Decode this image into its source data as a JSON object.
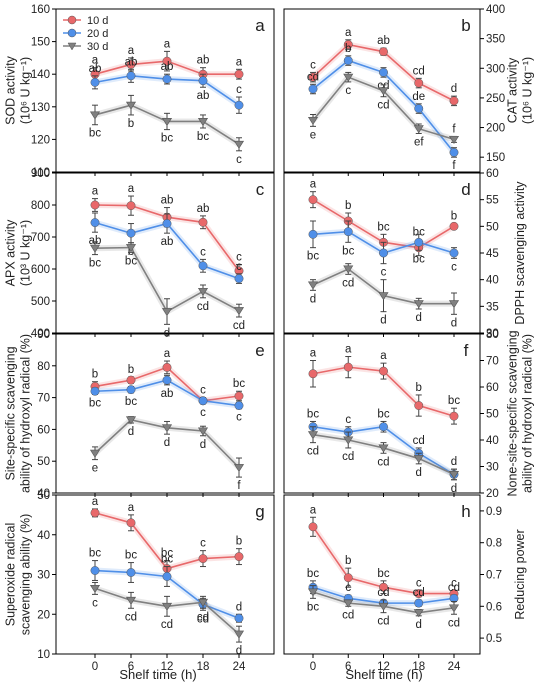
{
  "figure": {
    "xlabel_left": "Shelf time (h)",
    "xlabel_right": "Shelf time (h)",
    "legend": [
      {
        "label": "10 d",
        "color": "#e8686a",
        "marker": "circle"
      },
      {
        "label": "20 d",
        "color": "#4f8fe8",
        "marker": "circle"
      },
      {
        "label": "30 d",
        "color": "#808080",
        "marker": "triangle-down"
      }
    ]
  },
  "chart_data": [
    {
      "type": "line",
      "panel": "a",
      "axis_side": "left",
      "ylabel": [
        "SOD activity",
        "(10⁶ U kg⁻¹)"
      ],
      "x": [
        0,
        6,
        12,
        18,
        24
      ],
      "xticks": [
        "0",
        "6",
        "12",
        "18",
        "24"
      ],
      "ylim": [
        110,
        160
      ],
      "yticks": [
        110,
        120,
        130,
        140,
        150,
        160
      ],
      "series": [
        {
          "name": "10 d",
          "values": [
            140,
            143,
            144,
            140,
            140
          ],
          "err": [
            2,
            2,
            3,
            2,
            1.5
          ],
          "letters": [
            "a",
            "a",
            "a",
            "ab",
            "a"
          ],
          "letter_pos": [
            "above",
            "above",
            "above",
            "above",
            "above"
          ]
        },
        {
          "name": "20 d",
          "values": [
            137.5,
            139.5,
            138.5,
            138,
            130.5
          ],
          "err": [
            2,
            2,
            1.5,
            2,
            2.5
          ],
          "letters": [
            "ab",
            "ab",
            "ab",
            "ab",
            "c"
          ],
          "letter_pos": [
            "above",
            "above",
            "above",
            "below",
            "above"
          ]
        },
        {
          "name": "30 d",
          "values": [
            127.5,
            130.5,
            125.5,
            125.5,
            118.5
          ],
          "err": [
            3,
            3,
            2.5,
            2,
            2
          ],
          "letters": [
            "bc",
            "b",
            "bc",
            "bc",
            "c"
          ],
          "letter_pos": [
            "below",
            "below",
            "below",
            "below",
            "below"
          ]
        }
      ]
    },
    {
      "type": "line",
      "panel": "b",
      "axis_side": "right",
      "ylabel": [
        "CAT activity",
        "(10⁶ U kg⁻¹)"
      ],
      "x": [
        0,
        6,
        12,
        18,
        24
      ],
      "xticks": [
        "0",
        "6",
        "12",
        "18",
        "24"
      ],
      "ylim": [
        125,
        400
      ],
      "yticks": [
        150,
        200,
        250,
        300,
        350,
        400
      ],
      "series": [
        {
          "name": "10 d",
          "values": [
            285,
            340,
            328,
            275,
            245
          ],
          "err": [
            8,
            8,
            6,
            8,
            8
          ],
          "letters": [
            "c",
            "a",
            "ab",
            "cd",
            "d"
          ],
          "letter_pos": [
            "above",
            "above",
            "above",
            "above",
            "above"
          ]
        },
        {
          "name": "20 d",
          "values": [
            265,
            313,
            293,
            232,
            158
          ],
          "err": [
            8,
            8,
            8,
            8,
            8
          ],
          "letters": [
            "cd",
            "b",
            "cd",
            "de",
            "f"
          ],
          "letter_pos": [
            "above",
            "above",
            "below",
            "above",
            "below"
          ]
        },
        {
          "name": "30 d",
          "values": [
            212,
            285,
            262,
            198,
            180
          ],
          "err": [
            10,
            8,
            10,
            8,
            5
          ],
          "letters": [
            "e",
            "c",
            "cd",
            "ef",
            "f"
          ],
          "letter_pos": [
            "below",
            "below",
            "below",
            "below",
            "above"
          ]
        }
      ]
    },
    {
      "type": "line",
      "panel": "c",
      "axis_side": "left",
      "ylabel": [
        "APX activity",
        "(10³ U kg⁻¹)"
      ],
      "x": [
        0,
        6,
        12,
        18,
        24
      ],
      "xticks": [
        "0",
        "6",
        "12",
        "18",
        "24"
      ],
      "ylim": [
        400,
        900
      ],
      "yticks": [
        400,
        500,
        600,
        700,
        800,
        900
      ],
      "series": [
        {
          "name": "10 d",
          "values": [
            800,
            798,
            762,
            746,
            594
          ],
          "err": [
            20,
            30,
            30,
            20,
            20
          ],
          "letters": [
            "a",
            "a",
            "ab",
            "ab",
            "c"
          ],
          "letter_pos": [
            "above",
            "above",
            "above",
            "above",
            "above"
          ]
        },
        {
          "name": "20 d",
          "values": [
            745,
            712,
            742,
            610,
            570
          ],
          "err": [
            30,
            30,
            30,
            20,
            15
          ],
          "letters": [
            "ab",
            "b",
            "ab",
            "c",
            "c"
          ],
          "letter_pos": [
            "below",
            "below",
            "below",
            "above",
            "above"
          ]
        },
        {
          "name": "30 d",
          "values": [
            665,
            667,
            467,
            530,
            470
          ],
          "err": [
            20,
            15,
            40,
            20,
            20
          ],
          "letters": [
            "bc",
            "bc",
            "d",
            "cd",
            "cd"
          ],
          "letter_pos": [
            "below",
            "below",
            "below",
            "below",
            "below"
          ]
        }
      ]
    },
    {
      "type": "line",
      "panel": "d",
      "axis_side": "right",
      "ylabel": [
        "DPPH scavenging activity"
      ],
      "x": [
        0,
        6,
        12,
        18,
        24
      ],
      "xticks": [
        "0",
        "6",
        "12",
        "18",
        "24"
      ],
      "ylim": [
        30,
        60
      ],
      "yticks": [
        30,
        35,
        40,
        45,
        50,
        55,
        60
      ],
      "series": [
        {
          "name": "10 d",
          "values": [
            55,
            51,
            47,
            46,
            50
          ],
          "err": [
            1.5,
            1.5,
            1.5,
            1.5,
            0.5
          ],
          "letters": [
            "a",
            "b",
            "bc",
            "bc",
            "b"
          ],
          "letter_pos": [
            "above",
            "above",
            "above",
            "above",
            "above"
          ]
        },
        {
          "name": "20 d",
          "values": [
            48.5,
            49,
            45,
            47,
            45
          ],
          "err": [
            2.5,
            2,
            2,
            1.5,
            1
          ],
          "letters": [
            "bc",
            "bc",
            "c",
            "bc",
            "c"
          ],
          "letter_pos": [
            "below",
            "below",
            "below",
            "below",
            "below"
          ]
        },
        {
          "name": "30 d",
          "values": [
            39,
            42,
            37,
            35.5,
            35.5
          ],
          "err": [
            1,
            1,
            3,
            1,
            2
          ],
          "letters": [
            "d",
            "cd",
            "d",
            "d",
            "d"
          ],
          "letter_pos": [
            "below",
            "below",
            "below",
            "below",
            "below"
          ]
        }
      ]
    },
    {
      "type": "line",
      "panel": "e",
      "axis_side": "left",
      "ylabel": [
        "Site-specific scavenging",
        "ability of hydroxyl radical (%)"
      ],
      "x": [
        0,
        6,
        12,
        18,
        24
      ],
      "xticks": [
        "0",
        "6",
        "12",
        "18",
        "24"
      ],
      "ylim": [
        40,
        90
      ],
      "yticks": [
        40,
        50,
        60,
        70,
        80,
        90
      ],
      "series": [
        {
          "name": "10 d",
          "values": [
            73.5,
            75.5,
            79.5,
            69,
            70.5
          ],
          "err": [
            1.5,
            1,
            2,
            1,
            1.5
          ],
          "letters": [
            "b",
            "b",
            "a",
            "c",
            "bc"
          ],
          "letter_pos": [
            "above",
            "above",
            "above",
            "above",
            "above"
          ]
        },
        {
          "name": "20 d",
          "values": [
            72,
            72.5,
            75.5,
            69,
            67.5
          ],
          "err": [
            1,
            1,
            1.5,
            1,
            1
          ],
          "letters": [
            "bc",
            "bc",
            "ab",
            "c",
            "c"
          ],
          "letter_pos": [
            "below",
            "below",
            "below",
            "below",
            "below"
          ]
        },
        {
          "name": "30 d",
          "values": [
            52.5,
            63,
            60.5,
            59.5,
            48
          ],
          "err": [
            2,
            1,
            2,
            1.5,
            3
          ],
          "letters": [
            "e",
            "d",
            "d",
            "d",
            "f"
          ],
          "letter_pos": [
            "below",
            "below",
            "below",
            "below",
            "below"
          ]
        }
      ]
    },
    {
      "type": "line",
      "panel": "f",
      "axis_side": "right",
      "ylabel": [
        "None-site-specific scavenging",
        "ability of hydroxyl radical (%)"
      ],
      "x": [
        0,
        6,
        12,
        18,
        24
      ],
      "xticks": [
        "0",
        "6",
        "12",
        "18",
        "24"
      ],
      "ylim": [
        20,
        80
      ],
      "yticks": [
        20,
        30,
        40,
        50,
        60,
        70,
        80
      ],
      "series": [
        {
          "name": "10 d",
          "values": [
            65,
            67.5,
            66,
            53,
            49
          ],
          "err": [
            5,
            4,
            3,
            4,
            3
          ],
          "letters": [
            "a",
            "a",
            "a",
            "b",
            "bc"
          ],
          "letter_pos": [
            "above",
            "above",
            "above",
            "above",
            "above"
          ]
        },
        {
          "name": "20 d",
          "values": [
            45,
            43,
            45,
            35,
            27
          ],
          "err": [
            2,
            2,
            2,
            2,
            2
          ],
          "letters": [
            "bc",
            "c",
            "bc",
            "cd",
            "d"
          ],
          "letter_pos": [
            "above",
            "above",
            "above",
            "above",
            "above"
          ]
        },
        {
          "name": "30 d",
          "values": [
            42,
            40,
            37,
            33,
            27
          ],
          "err": [
            3,
            3,
            2,
            2,
            2
          ],
          "letters": [
            "cd",
            "cd",
            "cd",
            "d",
            "d"
          ],
          "letter_pos": [
            "below",
            "below",
            "below",
            "below",
            "below"
          ]
        }
      ]
    },
    {
      "type": "line",
      "panel": "g",
      "axis_side": "left",
      "ylabel": [
        "Superoxide  radical",
        "scavenging ability (%)"
      ],
      "x": [
        0,
        6,
        12,
        18,
        24
      ],
      "xticks": [
        "0",
        "6",
        "12",
        "18",
        "24"
      ],
      "ylim": [
        10,
        50
      ],
      "yticks": [
        10,
        20,
        30,
        40,
        50
      ],
      "series": [
        {
          "name": "10 d",
          "values": [
            45.5,
            43,
            31.5,
            34,
            34.5
          ],
          "err": [
            1,
            2,
            2,
            2,
            2
          ],
          "letters": [
            "a",
            "a",
            "bc",
            "c",
            "b"
          ],
          "letter_pos": [
            "above",
            "above",
            "above",
            "above",
            "above"
          ]
        },
        {
          "name": "20 d",
          "values": [
            31,
            30.5,
            29.5,
            22.5,
            19
          ],
          "err": [
            2.5,
            2.5,
            2.5,
            1.5,
            1
          ],
          "letters": [
            "bc",
            "bc",
            "bc",
            "cd",
            "d"
          ],
          "letter_pos": [
            "above",
            "above",
            "above",
            "below",
            "above"
          ]
        },
        {
          "name": "30 d",
          "values": [
            26.5,
            23.5,
            22,
            23,
            15
          ],
          "err": [
            1.5,
            2,
            2.5,
            1.5,
            2
          ],
          "letters": [
            "c",
            "cd",
            "cd",
            "cd",
            "d"
          ],
          "letter_pos": [
            "below",
            "below",
            "below",
            "below",
            "below"
          ]
        }
      ]
    },
    {
      "type": "line",
      "panel": "h",
      "axis_side": "right",
      "ylabel": [
        "Reducing power"
      ],
      "x": [
        0,
        6,
        12,
        18,
        24
      ],
      "xticks": [
        "0",
        "6",
        "12",
        "18",
        "24"
      ],
      "ylim": [
        0.45,
        0.95
      ],
      "yticks": [
        0.5,
        0.6,
        0.7,
        0.8,
        0.9
      ],
      "series": [
        {
          "name": "10 d",
          "values": [
            0.85,
            0.69,
            0.66,
            0.64,
            0.64
          ],
          "err": [
            0.03,
            0.03,
            0.02,
            0.01,
            0.01
          ],
          "letters": [
            "a",
            "b",
            "bc",
            "c",
            "c"
          ],
          "letter_pos": [
            "above",
            "above",
            "above",
            "above",
            "above"
          ]
        },
        {
          "name": "20 d",
          "values": [
            0.66,
            0.625,
            0.61,
            0.61,
            0.625
          ],
          "err": [
            0.02,
            0.01,
            0.01,
            0.01,
            0.01
          ],
          "letters": [
            "bc",
            "c",
            "cd",
            "cd",
            "cd"
          ],
          "letter_pos": [
            "above",
            "above",
            "above",
            "above",
            "above"
          ]
        },
        {
          "name": "30 d",
          "values": [
            0.645,
            0.61,
            0.6,
            0.58,
            0.595
          ],
          "err": [
            0.02,
            0.01,
            0.02,
            0.01,
            0.02
          ],
          "letters": [
            "bc",
            "cd",
            "cd",
            "d",
            "cd"
          ],
          "letter_pos": [
            "below",
            "below",
            "below",
            "below",
            "below"
          ]
        }
      ]
    }
  ]
}
